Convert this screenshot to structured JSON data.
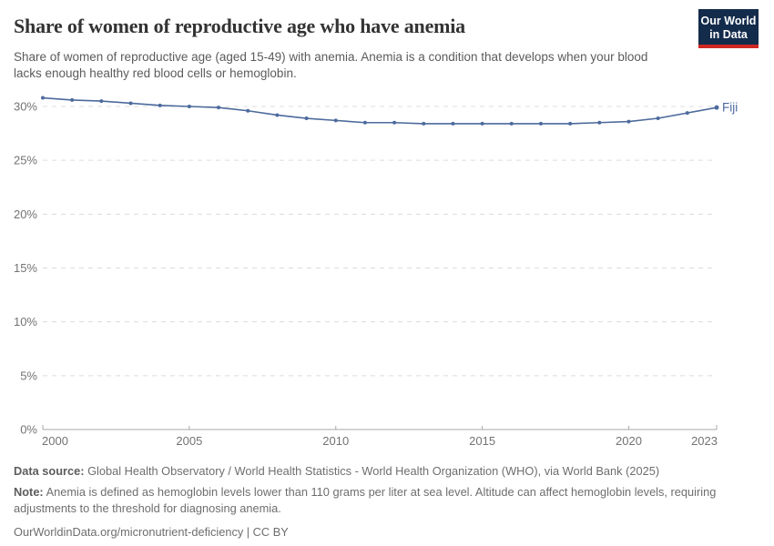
{
  "header": {
    "title": "Share of women of reproductive age who have anemia",
    "subtitle": "Share of women of reproductive age (aged 15-49) with anemia. Anemia is a condition that develops when your blood lacks enough healthy red blood cells or hemoglobin.",
    "logo": {
      "line1": "Our World",
      "line2": "in Data",
      "bg_color": "#142c4c",
      "accent_color": "#cf2722"
    }
  },
  "chart_data": {
    "type": "line",
    "title": "Share of women of reproductive age who have anemia",
    "x": [
      2000,
      2001,
      2002,
      2003,
      2004,
      2005,
      2006,
      2007,
      2008,
      2009,
      2010,
      2011,
      2012,
      2013,
      2014,
      2015,
      2016,
      2017,
      2018,
      2019,
      2020,
      2021,
      2022,
      2023
    ],
    "series": [
      {
        "name": "Fiji",
        "color": "#4C6A9C",
        "values": [
          30.8,
          30.6,
          30.5,
          30.3,
          30.1,
          30.0,
          29.9,
          29.6,
          29.2,
          28.9,
          28.7,
          28.5,
          28.5,
          28.4,
          28.4,
          28.4,
          28.4,
          28.4,
          28.4,
          28.5,
          28.6,
          28.9,
          29.4,
          29.9
        ]
      }
    ],
    "xlabel": "",
    "ylabel": "",
    "ylim": [
      0,
      31.9
    ],
    "yticks": [
      0,
      5,
      10,
      15,
      20,
      25,
      30
    ],
    "ytick_suffix": "%",
    "xticks": [
      2000,
      2005,
      2010,
      2015,
      2020,
      2023
    ],
    "grid": "dashed-horizontal",
    "legend": "end-of-line-label",
    "grid_color": "#dcdcdc",
    "axis_color": "#a8a8a8",
    "tick_label_color": "#737373"
  },
  "footer": {
    "source_label": "Data source:",
    "source_text": "Global Health Observatory / World Health Statistics - World Health Organization (WHO), via World Bank (2025)",
    "note_label": "Note:",
    "note_text": "Anemia is defined as hemoglobin levels lower than 110 grams per liter at sea level. Altitude can affect hemoglobin levels, requiring adjustments to the threshold for diagnosing anemia.",
    "citation": "OurWorldinData.org/micronutrient-deficiency | CC BY"
  }
}
